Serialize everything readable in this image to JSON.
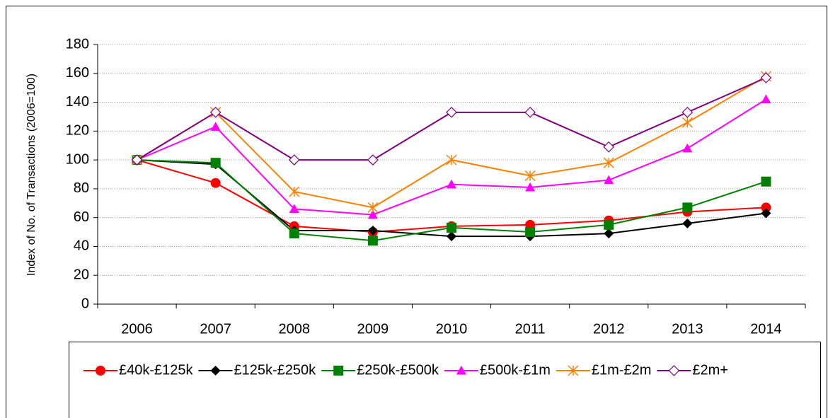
{
  "chart_data": {
    "type": "line",
    "y_label": "Index of No. of Transactions (2006=100)",
    "categories": [
      "2006",
      "2007",
      "2008",
      "2009",
      "2010",
      "2011",
      "2012",
      "2013",
      "2014"
    ],
    "series": [
      {
        "name": "£40k-£125k",
        "color": "#ff0000",
        "marker": "circle",
        "values": [
          100,
          84,
          54,
          50,
          54,
          55,
          58,
          64,
          67
        ]
      },
      {
        "name": "£125k-£250k",
        "color": "#000000",
        "marker": "diamond",
        "values": [
          100,
          97,
          51,
          51,
          47,
          47,
          49,
          56,
          63
        ]
      },
      {
        "name": "£250k-£500k",
        "color": "#008000",
        "marker": "square",
        "values": [
          100,
          98,
          49,
          44,
          53,
          50,
          55,
          67,
          85
        ]
      },
      {
        "name": "£500k-£1m",
        "color": "#ff00ff",
        "marker": "triangle",
        "values": [
          100,
          123,
          66,
          62,
          83,
          81,
          86,
          108,
          142
        ]
      },
      {
        "name": "£1m-£2m",
        "color": "#ff8000",
        "marker": "star",
        "values": [
          100,
          133,
          78,
          67,
          100,
          89,
          98,
          126,
          158
        ]
      },
      {
        "name": "£2m+",
        "color": "#800080",
        "marker": "open-diamond",
        "values": [
          100,
          133,
          100,
          100,
          133,
          133,
          109,
          133,
          157
        ]
      }
    ],
    "ylim": [
      0,
      180
    ],
    "yticks": [
      0,
      20,
      40,
      60,
      80,
      100,
      120,
      140,
      160,
      180
    ],
    "grid": true,
    "legend": "bottom"
  }
}
